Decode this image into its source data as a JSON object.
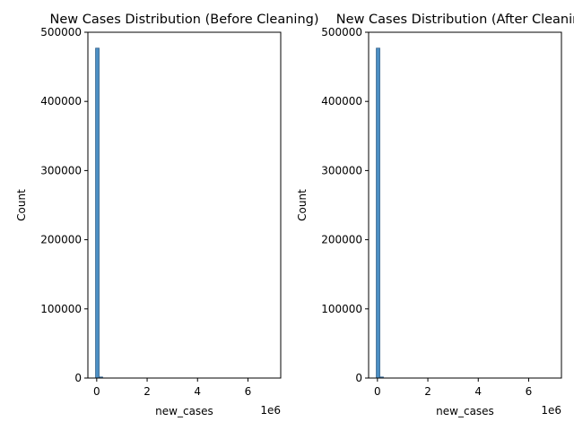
{
  "chart_data": [
    {
      "type": "histogram",
      "title": "New Cases Distribution (Before Cleaning)",
      "xlabel": "new_cases",
      "ylabel": "Count",
      "x_offset_label": "1e6",
      "xlim": [
        -350000,
        7300000
      ],
      "ylim": [
        0,
        500000
      ],
      "xticks": [
        0,
        2000000,
        4000000,
        6000000
      ],
      "xtick_labels": [
        "0",
        "2",
        "4",
        "6"
      ],
      "yticks": [
        0,
        100000,
        200000,
        300000,
        400000,
        500000
      ],
      "ytick_labels": [
        "0",
        "100000",
        "200000",
        "300000",
        "400000",
        "500000"
      ],
      "bins": [
        {
          "x0": -45000,
          "x1": 95000,
          "count": 477000
        },
        {
          "x0": 95000,
          "x1": 235000,
          "count": 1500
        },
        {
          "x0": 235000,
          "x1": 6900000,
          "count": 0
        }
      ],
      "bar_color": "#4c8fc4",
      "edge_color": "#2f5f8a",
      "grid": false
    },
    {
      "type": "histogram",
      "title": "New Cases Distribution (After Cleaning)",
      "xlabel": "new_cases",
      "ylabel": "Count",
      "x_offset_label": "1e6",
      "xlim": [
        -350000,
        7300000
      ],
      "ylim": [
        0,
        500000
      ],
      "xticks": [
        0,
        2000000,
        4000000,
        6000000
      ],
      "xtick_labels": [
        "0",
        "2",
        "4",
        "6"
      ],
      "yticks": [
        0,
        100000,
        200000,
        300000,
        400000,
        500000
      ],
      "ytick_labels": [
        "0",
        "100000",
        "200000",
        "300000",
        "400000",
        "500000"
      ],
      "bins": [
        {
          "x0": -45000,
          "x1": 95000,
          "count": 477000
        },
        {
          "x0": 95000,
          "x1": 235000,
          "count": 1500
        },
        {
          "x0": 235000,
          "x1": 6900000,
          "count": 0
        }
      ],
      "bar_color": "#4c8fc4",
      "edge_color": "#2f5f8a",
      "grid": false
    }
  ]
}
